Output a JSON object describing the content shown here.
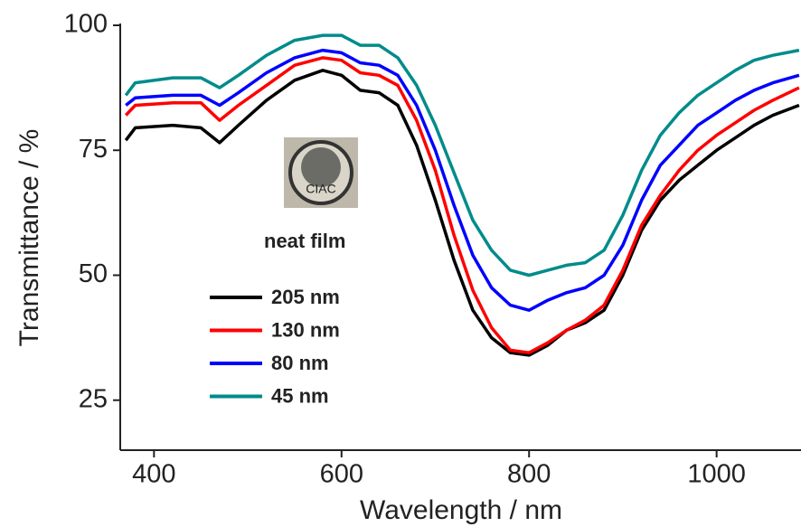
{
  "chart_data": {
    "type": "line",
    "xlabel": "Wavelength / nm",
    "ylabel": "Transmittance / %",
    "annotation": "neat film",
    "logo_text": "CIAC",
    "x": [
      370,
      380,
      420,
      450,
      470,
      490,
      520,
      550,
      580,
      600,
      620,
      640,
      660,
      680,
      700,
      720,
      740,
      760,
      780,
      800,
      820,
      840,
      860,
      880,
      900,
      920,
      940,
      960,
      980,
      1000,
      1020,
      1040,
      1060,
      1088
    ],
    "series": [
      {
        "name": "205 nm",
        "color": "#000000",
        "values": [
          77,
          79.5,
          80,
          79.5,
          76.5,
          80,
          85,
          89,
          91,
          90,
          87,
          86.5,
          84,
          76,
          65,
          53,
          43,
          37.5,
          34.5,
          34,
          36,
          39,
          40.5,
          43,
          50,
          59,
          65,
          69,
          72,
          75,
          77.5,
          80,
          82,
          84
        ]
      },
      {
        "name": "130 nm",
        "color": "#ff0000",
        "values": [
          82,
          84,
          84.5,
          84.5,
          81,
          84,
          88,
          92,
          93.5,
          93,
          90.5,
          90,
          88,
          81,
          71,
          58,
          47,
          39.5,
          35,
          34.5,
          36.5,
          39,
          41,
          44,
          51,
          60,
          66,
          71,
          75,
          78,
          80.5,
          83,
          85,
          87.5
        ]
      },
      {
        "name": "80 nm",
        "color": "#0000ff",
        "values": [
          84,
          85.5,
          86,
          86,
          84,
          86.5,
          90.5,
          93.5,
          95,
          94.5,
          92.5,
          92,
          90,
          84,
          75,
          64,
          54,
          47.5,
          44,
          43,
          45,
          46.5,
          47.5,
          50,
          56,
          65,
          72,
          76,
          80,
          82.5,
          85,
          87,
          88.5,
          90
        ]
      },
      {
        "name": "45 nm",
        "color": "#008b8b",
        "values": [
          86,
          88.5,
          89.5,
          89.5,
          87.5,
          90,
          94,
          97,
          98,
          98,
          96,
          96,
          93.5,
          88,
          80,
          70.5,
          61,
          55,
          51,
          50,
          51,
          52,
          52.5,
          55,
          62,
          71,
          78,
          82.5,
          86,
          88.5,
          91,
          93,
          94,
          95
        ]
      }
    ],
    "xlim": [
      364,
      1090
    ],
    "xticks": [
      400,
      600,
      800,
      1000
    ],
    "ylim": [
      15,
      100
    ],
    "yticks": [
      25,
      50,
      75,
      100
    ]
  }
}
